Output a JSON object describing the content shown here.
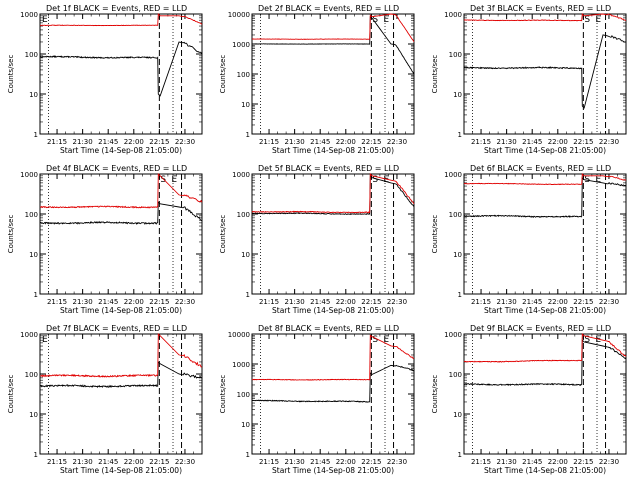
{
  "figure": {
    "colors": {
      "events": "#000000",
      "lld": "#e00000",
      "axis": "#000000",
      "background": "#ffffff"
    },
    "xlabel": "Start Time (14-Sep-08 21:05:00)",
    "ylabel": "Counts/sec",
    "x_tick_labels": [
      "21:15",
      "21:30",
      "21:45",
      "22:00",
      "22:15",
      "22:30"
    ]
  },
  "chart_data": [
    {
      "type": "line",
      "title": "Det 1f BLACK = Events, RED = LLD",
      "xlabel": "Start Time (14-Sep-08 21:05:00)",
      "ylabel": "Counts/sec",
      "yscale": "log",
      "ylim": [
        1,
        1000
      ],
      "y_tick_labels": [
        "1",
        "10",
        "100",
        "1000"
      ],
      "x_tick_labels": [
        "21:15",
        "21:30",
        "21:45",
        "22:00",
        "22:15",
        "22:30"
      ],
      "markers": [
        "",
        "E"
      ],
      "series": [
        {
          "name": "Events",
          "color": "#000000",
          "level": 85,
          "level_end": 80,
          "noise": 0.03,
          "post": [
            10,
            200,
            100
          ]
        },
        {
          "name": "LLD",
          "color": "#e00000",
          "level": 520,
          "level_end": 520,
          "noise": 0.01,
          "post": [
            1000,
            900,
            560
          ]
        }
      ]
    },
    {
      "type": "line",
      "title": "Det 2f BLACK = Events, RED = LLD",
      "xlabel": "Start Time (14-Sep-08 21:05:00)",
      "ylabel": "Counts/sec",
      "yscale": "log",
      "ylim": [
        1,
        10000
      ],
      "y_tick_labels": [
        "1",
        "10",
        "100",
        "1000",
        "10000"
      ],
      "x_tick_labels": [
        "21:15",
        "21:30",
        "21:45",
        "22:00",
        "22:15",
        "22:30"
      ],
      "markers": [
        "S",
        "E"
      ],
      "series": [
        {
          "name": "Events",
          "color": "#000000",
          "level": 1000,
          "level_end": 1000,
          "noise": 0.01,
          "post": [
            8000,
            1000,
            100
          ]
        },
        {
          "name": "LLD",
          "color": "#e00000",
          "level": 1450,
          "level_end": 1450,
          "noise": 0.01,
          "post": [
            9000,
            10000,
            1200
          ]
        }
      ]
    },
    {
      "type": "line",
      "title": "Det 3f BLACK = Events, RED = LLD",
      "xlabel": "Start Time (14-Sep-08 21:05:00)",
      "ylabel": "Counts/sec",
      "yscale": "log",
      "ylim": [
        1,
        1000
      ],
      "y_tick_labels": [
        "1",
        "10",
        "100",
        "1000"
      ],
      "x_tick_labels": [
        "21:15",
        "21:30",
        "21:45",
        "22:00",
        "22:15",
        "22:30"
      ],
      "markers": [
        "S",
        "E"
      ],
      "series": [
        {
          "name": "Events",
          "color": "#000000",
          "level": 45,
          "level_end": 45,
          "noise": 0.03,
          "post": [
            5,
            300,
            200
          ]
        },
        {
          "name": "LLD",
          "color": "#e00000",
          "level": 700,
          "level_end": 690,
          "noise": 0.015,
          "post": [
            1000,
            1000,
            700
          ]
        }
      ]
    },
    {
      "type": "line",
      "title": "Det 4f BLACK = Events, RED = LLD",
      "xlabel": "Start Time (14-Sep-08 21:05:00)",
      "ylabel": "Counts/sec",
      "yscale": "log",
      "ylim": [
        1,
        1000
      ],
      "y_tick_labels": [
        "1",
        "10",
        "100",
        "1000"
      ],
      "x_tick_labels": [
        "21:15",
        "21:30",
        "21:45",
        "22:00",
        "22:15",
        "22:30"
      ],
      "markers": [
        "S",
        "E"
      ],
      "series": [
        {
          "name": "Events",
          "color": "#000000",
          "level": 60,
          "level_end": 60,
          "noise": 0.04,
          "post": [
            200,
            150,
            70
          ]
        },
        {
          "name": "LLD",
          "color": "#e00000",
          "level": 150,
          "level_end": 150,
          "noise": 0.03,
          "post": [
            1000,
            300,
            200
          ]
        }
      ]
    },
    {
      "type": "line",
      "title": "Det 5f BLACK = Events, RED = LLD",
      "xlabel": "Start Time (14-Sep-08 21:05:00)",
      "ylabel": "Counts/sec",
      "yscale": "log",
      "ylim": [
        1,
        1000
      ],
      "y_tick_labels": [
        "1",
        "10",
        "100",
        "1000"
      ],
      "x_tick_labels": [
        "21:15",
        "21:30",
        "21:45",
        "22:00",
        "22:15",
        "22:30"
      ],
      "markers": [
        "S",
        "E"
      ],
      "series": [
        {
          "name": "Events",
          "color": "#000000",
          "level": 105,
          "level_end": 100,
          "noise": 0.02,
          "post": [
            900,
            600,
            150
          ]
        },
        {
          "name": "LLD",
          "color": "#e00000",
          "level": 115,
          "level_end": 110,
          "noise": 0.02,
          "post": [
            1000,
            700,
            180
          ]
        }
      ]
    },
    {
      "type": "line",
      "title": "Det 6f BLACK = Events, RED = LLD",
      "xlabel": "Start Time (14-Sep-08 21:05:00)",
      "ylabel": "Counts/sec",
      "yscale": "log",
      "ylim": [
        1,
        1000
      ],
      "y_tick_labels": [
        "1",
        "10",
        "100",
        "1000"
      ],
      "x_tick_labels": [
        "21:15",
        "21:30",
        "21:45",
        "22:00",
        "22:15",
        "22:30"
      ],
      "markers": [
        "S",
        "E"
      ],
      "series": [
        {
          "name": "Events",
          "color": "#000000",
          "level": 90,
          "level_end": 85,
          "noise": 0.03,
          "post": [
            800,
            600,
            500
          ]
        },
        {
          "name": "LLD",
          "color": "#e00000",
          "level": 580,
          "level_end": 550,
          "noise": 0.015,
          "post": [
            1000,
            900,
            700
          ]
        }
      ]
    },
    {
      "type": "line",
      "title": "Det 7f BLACK = Events, RED = LLD",
      "xlabel": "Start Time (14-Sep-08 21:05:00)",
      "ylabel": "Counts/sec",
      "yscale": "log",
      "ylim": [
        1,
        1000
      ],
      "y_tick_labels": [
        "1",
        "10",
        "100",
        "1000"
      ],
      "x_tick_labels": [
        "21:15",
        "21:30",
        "21:45",
        "22:00",
        "22:15",
        "22:30"
      ],
      "markers": [
        "",
        "E"
      ],
      "series": [
        {
          "name": "Events",
          "color": "#000000",
          "level": 50,
          "level_end": 50,
          "noise": 0.04,
          "post": [
            200,
            100,
            80
          ]
        },
        {
          "name": "LLD",
          "color": "#e00000",
          "level": 90,
          "level_end": 90,
          "noise": 0.04,
          "post": [
            1000,
            300,
            150
          ]
        }
      ]
    },
    {
      "type": "line",
      "title": "Det 8f BLACK = Events, RED = LLD",
      "xlabel": "Start Time (14-Sep-08 21:05:00)",
      "ylabel": "Counts/sec",
      "yscale": "log",
      "ylim": [
        1,
        10000
      ],
      "y_tick_labels": [
        "1",
        "10",
        "100",
        "1000",
        "10000"
      ],
      "x_tick_labels": [
        "21:15",
        "21:30",
        "21:45",
        "22:00",
        "22:15",
        "22:30"
      ],
      "markers": [
        "S",
        "E"
      ],
      "series": [
        {
          "name": "Events",
          "color": "#000000",
          "level": 60,
          "level_end": 55,
          "noise": 0.03,
          "post": [
            500,
            900,
            600
          ]
        },
        {
          "name": "LLD",
          "color": "#e00000",
          "level": 300,
          "level_end": 300,
          "noise": 0.02,
          "post": [
            9000,
            4000,
            1500
          ]
        }
      ]
    },
    {
      "type": "line",
      "title": "Det 9f BLACK = Events, RED = LLD",
      "xlabel": "Start Time (14-Sep-08 21:05:00)",
      "ylabel": "Counts/sec",
      "yscale": "log",
      "ylim": [
        1,
        1000
      ],
      "y_tick_labels": [
        "1",
        "10",
        "100",
        "1000"
      ],
      "x_tick_labels": [
        "21:15",
        "21:30",
        "21:45",
        "22:00",
        "22:15",
        "22:30"
      ],
      "markers": [
        "S",
        "E"
      ],
      "series": [
        {
          "name": "Events",
          "color": "#000000",
          "level": 55,
          "level_end": 55,
          "noise": 0.03,
          "post": [
            700,
            500,
            250
          ]
        },
        {
          "name": "LLD",
          "color": "#e00000",
          "level": 200,
          "level_end": 220,
          "noise": 0.02,
          "post": [
            1000,
            700,
            270
          ]
        }
      ]
    }
  ]
}
